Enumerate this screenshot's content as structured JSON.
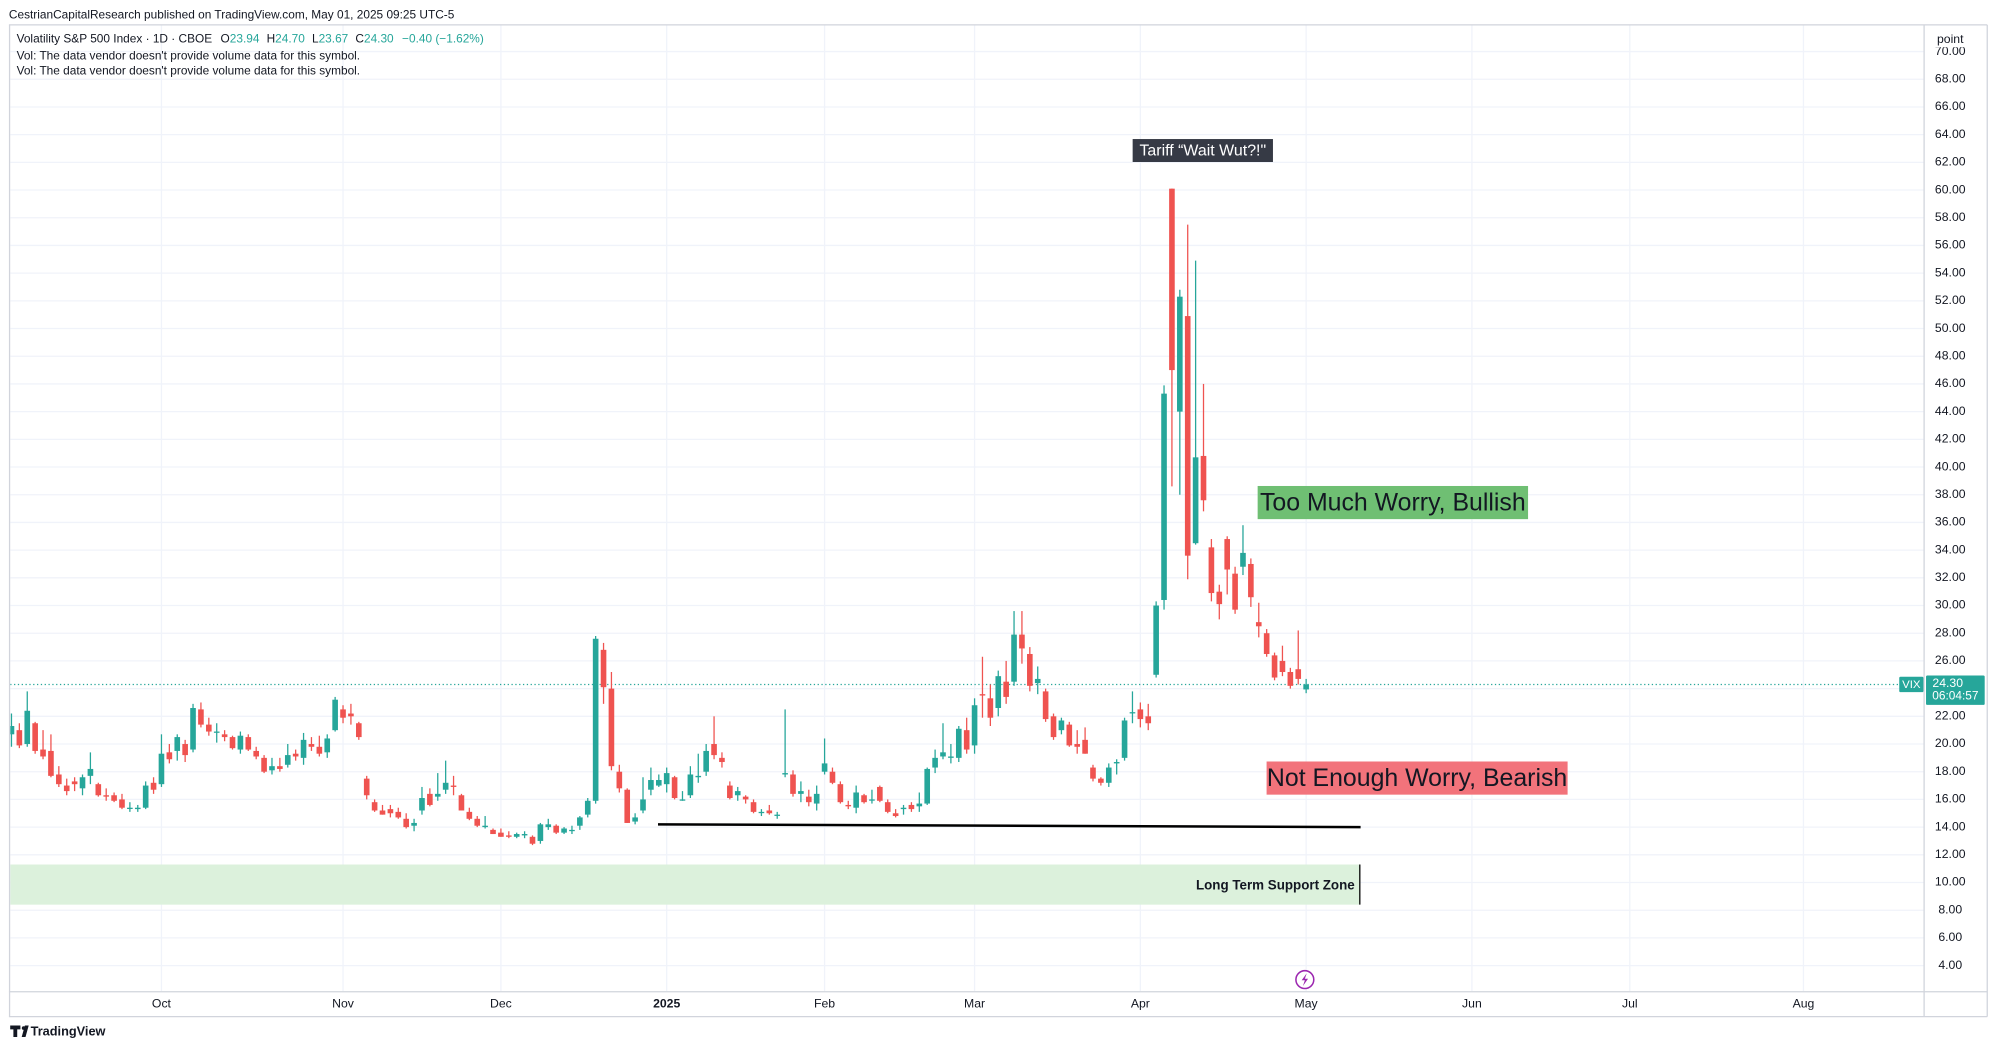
{
  "header": {
    "published": "CestrianCapitalResearch published on TradingView.com, May 01, 2025 09:25 UTC-5",
    "vol_notes": [
      "Vol: The data vendor doesn't provide volume data for this symbol.",
      "Vol: The data vendor doesn't provide volume data for this symbol."
    ]
  },
  "chart_data": {
    "type": "candlestick",
    "title": "Volatility S&P 500 Index · 1D · CBOE",
    "ohlc_legend": [
      {
        "key": "O",
        "value": "23.94"
      },
      {
        "key": "H",
        "value": "24.70"
      },
      {
        "key": "L",
        "value": "23.67"
      },
      {
        "key": "C",
        "value": "24.30"
      }
    ],
    "change": "−0.40 (−1.62%)",
    "y_axis_label": "point",
    "series": [
      {
        "name": "VIX",
        "up_color": "#26a69a",
        "down_color": "#ef5350",
        "open": [
          20.7,
          21.0,
          20.0,
          21.5,
          19.6,
          19.5,
          17.8,
          17.0,
          17.3,
          16.8,
          17.7,
          17.1,
          16.3,
          16.3,
          16.0,
          15.4,
          15.3,
          15.4,
          17.2,
          17.1,
          19.4,
          19.5,
          20.0,
          19.6,
          22.5,
          21.4,
          20.9,
          20.7,
          20.5,
          19.6,
          20.5,
          19.5,
          19.0,
          18.1,
          18.4,
          18.5,
          19.3,
          19.0,
          20.0,
          19.8,
          19.4,
          21.0,
          22.5,
          22.2,
          21.5,
          17.5,
          15.8,
          15.2,
          15.3,
          15.1,
          14.6,
          14.1,
          15.2,
          16.4,
          16.2,
          16.7,
          17.0,
          16.3,
          15.1,
          14.6,
          14.0,
          13.8,
          13.6,
          13.4,
          13.3,
          13.4,
          13.3,
          13.0,
          14.0,
          14.1,
          13.6,
          13.8,
          14.1,
          14.9,
          15.9,
          26.8,
          24.0,
          18.0,
          16.7,
          14.4,
          15.2,
          16.7,
          17.0,
          17.1,
          17.6,
          16.0,
          16.3,
          17.6,
          18.0,
          20.0,
          19.0,
          17.0,
          16.3,
          16.2,
          15.8,
          15.1,
          15.2,
          14.9,
          17.8,
          17.8,
          16.4,
          16.2,
          15.7,
          18.0,
          18.0,
          17.1,
          15.6,
          15.4,
          16.3,
          16.0,
          16.9,
          15.8,
          15.0,
          15.3,
          15.6,
          15.5,
          15.7,
          18.3,
          19.1,
          19.0,
          19.0,
          21.0,
          19.9,
          23.6,
          23.3,
          22.6,
          24.5,
          24.5,
          27.9,
          26.5,
          24.4,
          23.8,
          22.0,
          21.0,
          21.4,
          20.0,
          20.3,
          18.3,
          17.5,
          17.2,
          18.6,
          19.0,
          22.3,
          22.5,
          22.0,
          25.0,
          30.4,
          60.1,
          44.0,
          50.9,
          34.5,
          40.8,
          34.2,
          31.0,
          34.8,
          32.3,
          32.8,
          33.0,
          28.8,
          28.0,
          26.4,
          26.0,
          25.2,
          25.4,
          23.94
        ],
        "high": [
          22.2,
          21.5,
          23.8,
          21.6,
          21.0,
          20.7,
          18.4,
          17.5,
          17.6,
          17.8,
          19.4,
          17.2,
          16.8,
          16.5,
          16.4,
          15.8,
          15.6,
          17.3,
          17.6,
          20.7,
          20.0,
          20.7,
          20.3,
          22.9,
          23.0,
          21.9,
          21.5,
          21.0,
          20.6,
          20.9,
          20.7,
          19.8,
          19.2,
          19.0,
          19.0,
          20.0,
          19.6,
          20.8,
          20.5,
          20.6,
          20.7,
          23.4,
          22.8,
          22.9,
          21.6,
          17.7,
          16.0,
          15.6,
          15.6,
          15.4,
          15.0,
          14.6,
          16.9,
          16.8,
          17.9,
          18.8,
          17.7,
          16.4,
          15.4,
          14.8,
          14.8,
          13.9,
          13.9,
          13.7,
          13.6,
          13.7,
          13.4,
          14.3,
          14.6,
          14.2,
          14.0,
          14.1,
          14.8,
          16.1,
          27.8,
          27.3,
          25.2,
          18.5,
          16.8,
          15.0,
          17.6,
          18.3,
          17.8,
          18.3,
          17.7,
          16.6,
          18.4,
          19.3,
          20.0,
          22.0,
          19.4,
          17.3,
          16.9,
          16.3,
          16.0,
          15.3,
          15.6,
          15.1,
          22.5,
          18.1,
          17.3,
          16.7,
          17.0,
          20.4,
          18.3,
          17.3,
          15.9,
          17.0,
          16.4,
          16.7,
          17.0,
          16.0,
          15.3,
          15.6,
          15.8,
          16.5,
          18.3,
          19.6,
          21.5,
          20.0,
          21.3,
          21.9,
          23.3,
          26.3,
          24.3,
          25.3,
          26.0,
          29.6,
          29.6,
          27.0,
          25.6,
          24.0,
          22.2,
          21.9,
          21.6,
          21.0,
          21.2,
          18.5,
          17.6,
          18.6,
          18.9,
          21.9,
          23.8,
          23.0,
          22.9,
          30.3,
          45.9,
          60.1,
          52.8,
          57.5,
          54.9,
          46.0,
          34.8,
          31.5,
          35.0,
          32.8,
          35.8,
          33.4,
          30.2,
          28.3,
          26.6,
          27.1,
          25.5,
          28.2,
          24.7
        ],
        "low": [
          19.8,
          19.7,
          19.8,
          19.3,
          18.9,
          17.6,
          16.9,
          16.3,
          16.6,
          16.3,
          17.1,
          16.2,
          15.9,
          15.8,
          15.3,
          15.1,
          15.1,
          15.3,
          16.4,
          16.9,
          18.6,
          18.8,
          18.7,
          19.4,
          21.2,
          20.6,
          20.1,
          20.2,
          19.6,
          19.3,
          19.5,
          18.9,
          17.9,
          17.8,
          18.0,
          18.3,
          18.8,
          18.5,
          19.5,
          19.1,
          19.0,
          20.9,
          21.5,
          21.4,
          20.3,
          16.0,
          15.1,
          14.9,
          14.7,
          14.6,
          13.9,
          13.7,
          14.9,
          15.5,
          15.9,
          16.4,
          16.3,
          15.2,
          14.5,
          14.0,
          13.9,
          13.5,
          13.3,
          13.2,
          13.2,
          13.2,
          12.7,
          12.8,
          13.8,
          13.5,
          13.5,
          13.5,
          13.8,
          14.7,
          15.7,
          22.9,
          18.1,
          16.5,
          14.3,
          14.2,
          15.0,
          16.3,
          16.9,
          16.5,
          16.0,
          15.9,
          16.1,
          17.2,
          17.7,
          18.9,
          18.3,
          16.0,
          15.9,
          15.7,
          15.0,
          14.8,
          14.9,
          14.6,
          17.6,
          16.2,
          15.8,
          15.5,
          15.2,
          17.8,
          17.1,
          15.7,
          15.3,
          15.0,
          15.7,
          15.7,
          15.8,
          15.0,
          14.7,
          14.9,
          15.1,
          15.1,
          15.6,
          17.9,
          18.9,
          18.6,
          18.7,
          19.3,
          19.3,
          21.9,
          21.3,
          22.0,
          22.9,
          24.2,
          25.8,
          23.8,
          23.6,
          21.6,
          20.3,
          20.7,
          19.8,
          19.3,
          19.3,
          17.3,
          17.0,
          16.9,
          17.8,
          18.8,
          21.5,
          21.2,
          21.0,
          24.8,
          29.7,
          38.6,
          38.0,
          31.9,
          34.4,
          36.8,
          30.3,
          29.0,
          30.8,
          29.4,
          32.2,
          29.9,
          27.7,
          26.3,
          24.6,
          24.9,
          24.0,
          24.3,
          23.67
        ],
        "close": [
          21.3,
          19.9,
          22.4,
          19.5,
          19.1,
          17.7,
          17.1,
          16.6,
          17.1,
          17.6,
          18.2,
          16.3,
          16.2,
          15.9,
          15.4,
          15.4,
          15.4,
          17.0,
          16.7,
          19.3,
          18.9,
          20.5,
          19.2,
          22.6,
          21.4,
          20.9,
          20.9,
          20.5,
          19.7,
          20.6,
          19.6,
          19.1,
          18.0,
          18.4,
          18.2,
          19.2,
          19.1,
          20.3,
          19.8,
          19.3,
          20.4,
          23.2,
          21.9,
          22.0,
          20.5,
          16.3,
          15.2,
          14.9,
          15.0,
          14.7,
          14.0,
          14.3,
          16.1,
          15.6,
          16.4,
          17.2,
          16.9,
          15.2,
          14.6,
          14.1,
          14.1,
          13.5,
          13.3,
          13.3,
          13.5,
          13.5,
          12.8,
          14.2,
          14.2,
          13.6,
          13.9,
          13.8,
          14.7,
          15.9,
          27.6,
          24.1,
          18.4,
          16.8,
          14.3,
          14.7,
          16.0,
          17.4,
          17.4,
          17.9,
          16.1,
          16.0,
          17.8,
          17.7,
          19.5,
          19.2,
          18.7,
          16.1,
          16.6,
          16.0,
          15.1,
          15.1,
          15.0,
          14.9,
          17.9,
          16.4,
          16.6,
          15.8,
          16.4,
          18.6,
          17.2,
          15.8,
          15.5,
          16.5,
          15.8,
          16.0,
          15.9,
          15.1,
          14.8,
          15.4,
          15.3,
          15.7,
          18.2,
          19.0,
          19.4,
          19.1,
          21.1,
          19.6,
          22.8,
          23.5,
          21.9,
          24.9,
          23.4,
          27.9,
          26.9,
          24.2,
          24.7,
          21.8,
          20.5,
          21.7,
          19.9,
          19.8,
          19.3,
          17.5,
          17.2,
          18.3,
          18.7,
          21.7,
          22.3,
          21.8,
          21.5,
          30.0,
          45.3,
          47.0,
          52.3,
          33.6,
          40.7,
          37.6,
          30.9,
          30.1,
          32.6,
          29.7,
          33.8,
          30.6,
          28.5,
          26.5,
          24.8,
          25.2,
          24.2,
          24.7,
          24.3
        ]
      }
    ],
    "last_price": {
      "value": 24.3,
      "label": "24.30",
      "countdown": "06:04:57",
      "color": "#26a69a"
    },
    "xlim": [
      -0.16,
      242.2
    ],
    "xticks": [
      {
        "value": 19,
        "label": "Oct"
      },
      {
        "value": 42,
        "label": "Nov"
      },
      {
        "value": 62,
        "label": "Dec"
      },
      {
        "value": 83,
        "label": "2025"
      },
      {
        "value": 103,
        "label": "Feb"
      },
      {
        "value": 122,
        "label": "Mar"
      },
      {
        "value": 143,
        "label": "Apr"
      },
      {
        "value": 164,
        "label": "May"
      },
      {
        "value": 185,
        "label": "Jun"
      },
      {
        "value": 205,
        "label": "Jul"
      },
      {
        "value": 227,
        "label": "Aug"
      }
    ],
    "ylim": [
      2.16,
      71.88
    ],
    "yticks": [
      {
        "value": 4,
        "label": "4.00"
      },
      {
        "value": 6,
        "label": "6.00"
      },
      {
        "value": 8,
        "label": "8.00"
      },
      {
        "value": 10,
        "label": "10.00"
      },
      {
        "value": 12,
        "label": "12.00"
      },
      {
        "value": 14,
        "label": "14.00"
      },
      {
        "value": 16,
        "label": "16.00"
      },
      {
        "value": 18,
        "label": "18.00"
      },
      {
        "value": 20,
        "label": "20.00"
      },
      {
        "value": 22,
        "label": "22.00"
      },
      {
        "value": 24,
        "label": "24.00"
      },
      {
        "value": 26,
        "label": "26.00"
      },
      {
        "value": 28,
        "label": "28.00"
      },
      {
        "value": 30,
        "label": "30.00"
      },
      {
        "value": 32,
        "label": "32.00"
      },
      {
        "value": 34,
        "label": "34.00"
      },
      {
        "value": 36,
        "label": "36.00"
      },
      {
        "value": 38,
        "label": "38.00"
      },
      {
        "value": 40,
        "label": "40.00"
      },
      {
        "value": 42,
        "label": "42.00"
      },
      {
        "value": 44,
        "label": "44.00"
      },
      {
        "value": 46,
        "label": "46.00"
      },
      {
        "value": 48,
        "label": "48.00"
      },
      {
        "value": 50,
        "label": "50.00"
      },
      {
        "value": 52,
        "label": "52.00"
      },
      {
        "value": 54,
        "label": "54.00"
      },
      {
        "value": 56,
        "label": "56.00"
      },
      {
        "value": 58,
        "label": "58.00"
      },
      {
        "value": 60,
        "label": "60.00"
      },
      {
        "value": 62,
        "label": "62.00"
      },
      {
        "value": 64,
        "label": "64.00"
      },
      {
        "value": 66,
        "label": "66.00"
      },
      {
        "value": 68,
        "label": "68.00"
      },
      {
        "value": 70,
        "label": "70.00"
      }
    ],
    "grid": true,
    "annotations": [
      {
        "text": "Tariff “Wait Wut?!\""
      },
      {
        "text": "Too Much Worry, Bullish"
      },
      {
        "text": "Not Enough Worry, Bearish"
      }
    ],
    "trendline": {
      "x": [
        81.9,
        170.9
      ],
      "y": [
        14.2,
        14.0
      ],
      "color": "#000000"
    },
    "support_zone": {
      "label": "Long Term Support Zone",
      "x": [
        -0.16,
        170.8
      ],
      "y": [
        8.4,
        11.3
      ],
      "color": "#dcf1dc"
    }
  },
  "footer": {
    "brand": "TradingView"
  }
}
